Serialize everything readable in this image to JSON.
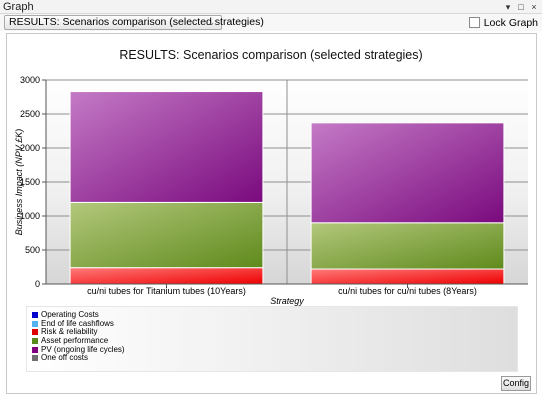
{
  "window": {
    "title": "Graph",
    "controls": [
      "▾",
      "□",
      "×"
    ]
  },
  "toolbar": {
    "selected_graph": "RESULTS: Scenarios comparison (selected strategies)",
    "lock_label": "Lock Graph",
    "lock_checked": false
  },
  "chart_data": {
    "type": "bar",
    "stacked": true,
    "title": "RESULTS: Scenarios comparison (selected strategies)",
    "xlabel": "Strategy",
    "ylabel": "Business Impact (NPV £K)",
    "ylim": [
      0,
      3000
    ],
    "yticks": [
      "0",
      "500",
      "1000",
      "1500",
      "2000",
      "2500",
      "3000"
    ],
    "categories": [
      "cu/ni tubes for Titanium tubes (10Years)",
      "cu/ni tubes for cu/ni tubes (8Years)"
    ],
    "series": [
      {
        "name": "Risk & reliability",
        "values": [
          240,
          220
        ],
        "color": "#e8151a"
      },
      {
        "name": "Asset performance",
        "values": [
          960,
          680
        ],
        "color": "#6e8e22"
      },
      {
        "name": "PV (ongoing life cycles)",
        "values": [
          1630,
          1470
        ],
        "color": "#7d0d80"
      }
    ],
    "legend": [
      {
        "name": "Operating Costs",
        "color": "#0000cc"
      },
      {
        "name": "End of life cashflows",
        "color": "#55b4f0"
      },
      {
        "name": "Risk & reliability",
        "color": "#dd0000"
      },
      {
        "name": "Asset performance",
        "color": "#5a8a1e"
      },
      {
        "name": "PV (ongoing life cycles)",
        "color": "#800080"
      },
      {
        "name": "One off costs",
        "color": "#707070"
      }
    ],
    "legend_position": "bottom"
  },
  "buttons": {
    "config": "Config"
  }
}
